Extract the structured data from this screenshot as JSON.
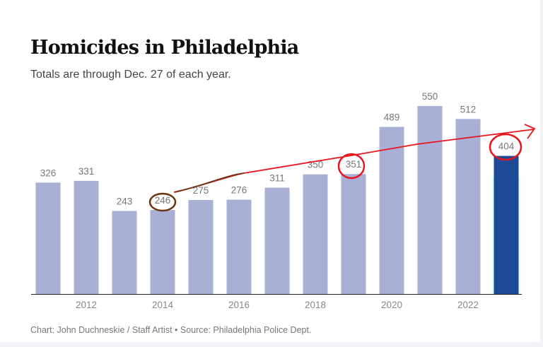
{
  "chart_data": {
    "type": "bar",
    "title": "Homicides in Philadelphia",
    "subtitle": "Totals are through Dec. 27 of each year.",
    "categories": [
      "2011",
      "2012",
      "2013",
      "2014",
      "2015",
      "2016",
      "2017",
      "2018",
      "2019",
      "2020",
      "2021",
      "2022",
      "2023"
    ],
    "values": [
      326,
      331,
      243,
      246,
      275,
      276,
      311,
      350,
      351,
      489,
      550,
      512,
      404
    ],
    "x_tick_labels": [
      "2012",
      "2014",
      "2016",
      "2018",
      "2020",
      "2022"
    ],
    "ylim": [
      0,
      550
    ],
    "grid": false,
    "bar_color": "#a8b0d6",
    "highlight_color": "#1d4a97",
    "highlight_category": "2023",
    "annotations": {
      "circled_values": [
        "246",
        "351",
        "404"
      ],
      "trend_arrow_color": "#e8141c",
      "circle_color_brown": "#6b3410"
    }
  },
  "footer": "Chart: John Duchneskie / Staff Artist • Source: Philadelphia Police Dept."
}
